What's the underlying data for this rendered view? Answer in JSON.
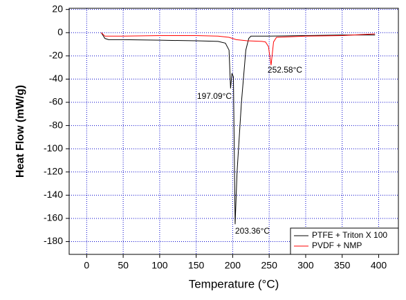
{
  "chart_data": {
    "type": "line",
    "x_label": "Temperature (°C)",
    "y_label": "Heat Flow (mW/g)",
    "xlim": [
      -24,
      427
    ],
    "ylim": [
      -191,
      21
    ],
    "xticks": [
      0,
      50,
      100,
      150,
      200,
      250,
      300,
      350,
      400
    ],
    "yticks": [
      20,
      0,
      -20,
      -40,
      -60,
      -80,
      -100,
      -120,
      -140,
      -160,
      -180
    ],
    "grid": true,
    "grid_color": "#0000cc",
    "legend": "lower right",
    "series": [
      {
        "name": "PTFE + Triton X 100",
        "color": "#000000",
        "x": [
          20,
          25,
          30,
          50,
          100,
          150,
          180,
          190,
          195,
          197.09,
          199,
          201,
          203.36,
          206,
          212,
          218,
          222,
          225,
          250,
          300,
          350,
          395
        ],
        "values": [
          0,
          -5,
          -6,
          -6,
          -6.5,
          -7,
          -7.5,
          -9,
          -15,
          -48,
          -35,
          -38,
          -165,
          -120,
          -60,
          -15,
          -5,
          -3,
          -3,
          -2.5,
          -2,
          -2
        ]
      },
      {
        "name": "PVDF + NMP",
        "color": "#ff0000",
        "x": [
          20,
          25,
          50,
          100,
          150,
          180,
          195,
          205,
          220,
          240,
          245,
          249,
          252.58,
          256,
          260,
          300,
          350,
          395
        ],
        "values": [
          0,
          -3,
          -3,
          -2.5,
          -2.5,
          -3,
          -4,
          -6,
          -7,
          -7.5,
          -8,
          -12,
          -28,
          -8,
          -4,
          -3,
          -2.5,
          -1
        ]
      }
    ],
    "annotations": [
      "197.09°C",
      "252.58°C",
      "203.36°C"
    ]
  }
}
